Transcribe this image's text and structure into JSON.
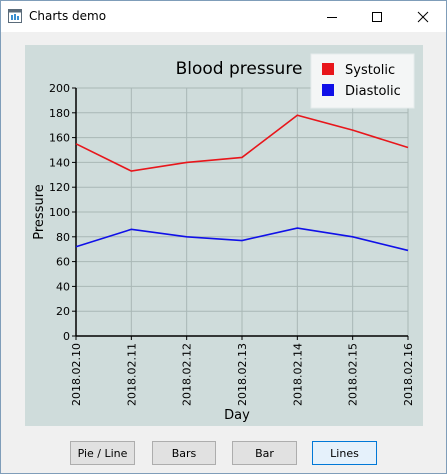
{
  "window": {
    "title": "Charts demo",
    "minimize_icon": "minimize-icon",
    "maximize_icon": "maximize-icon",
    "close_icon": "close-icon"
  },
  "chart_data": {
    "type": "line",
    "title": "Blood pressure",
    "xlabel": "Day",
    "ylabel": "Pressure",
    "categories": [
      "2018.02.10",
      "2018.02.11",
      "2018.02.12",
      "2018.02.13",
      "2018.02.14",
      "2018.02.15",
      "2018.02.16"
    ],
    "series": [
      {
        "name": "Systolic",
        "color": "#e8161b",
        "values": [
          155,
          133,
          140,
          144,
          178,
          166,
          152
        ]
      },
      {
        "name": "Diastolic",
        "color": "#1010e8",
        "values": [
          72,
          86,
          80,
          77,
          87,
          80,
          69
        ]
      }
    ],
    "ylim": [
      0,
      200
    ],
    "yticks": [
      0,
      20,
      40,
      60,
      80,
      100,
      120,
      140,
      160,
      180,
      200
    ],
    "grid": true,
    "legend_position": "top-right"
  },
  "buttons": {
    "pie_line": "Pie / Line",
    "bars": "Bars",
    "bar": "Bar",
    "lines": "Lines"
  }
}
